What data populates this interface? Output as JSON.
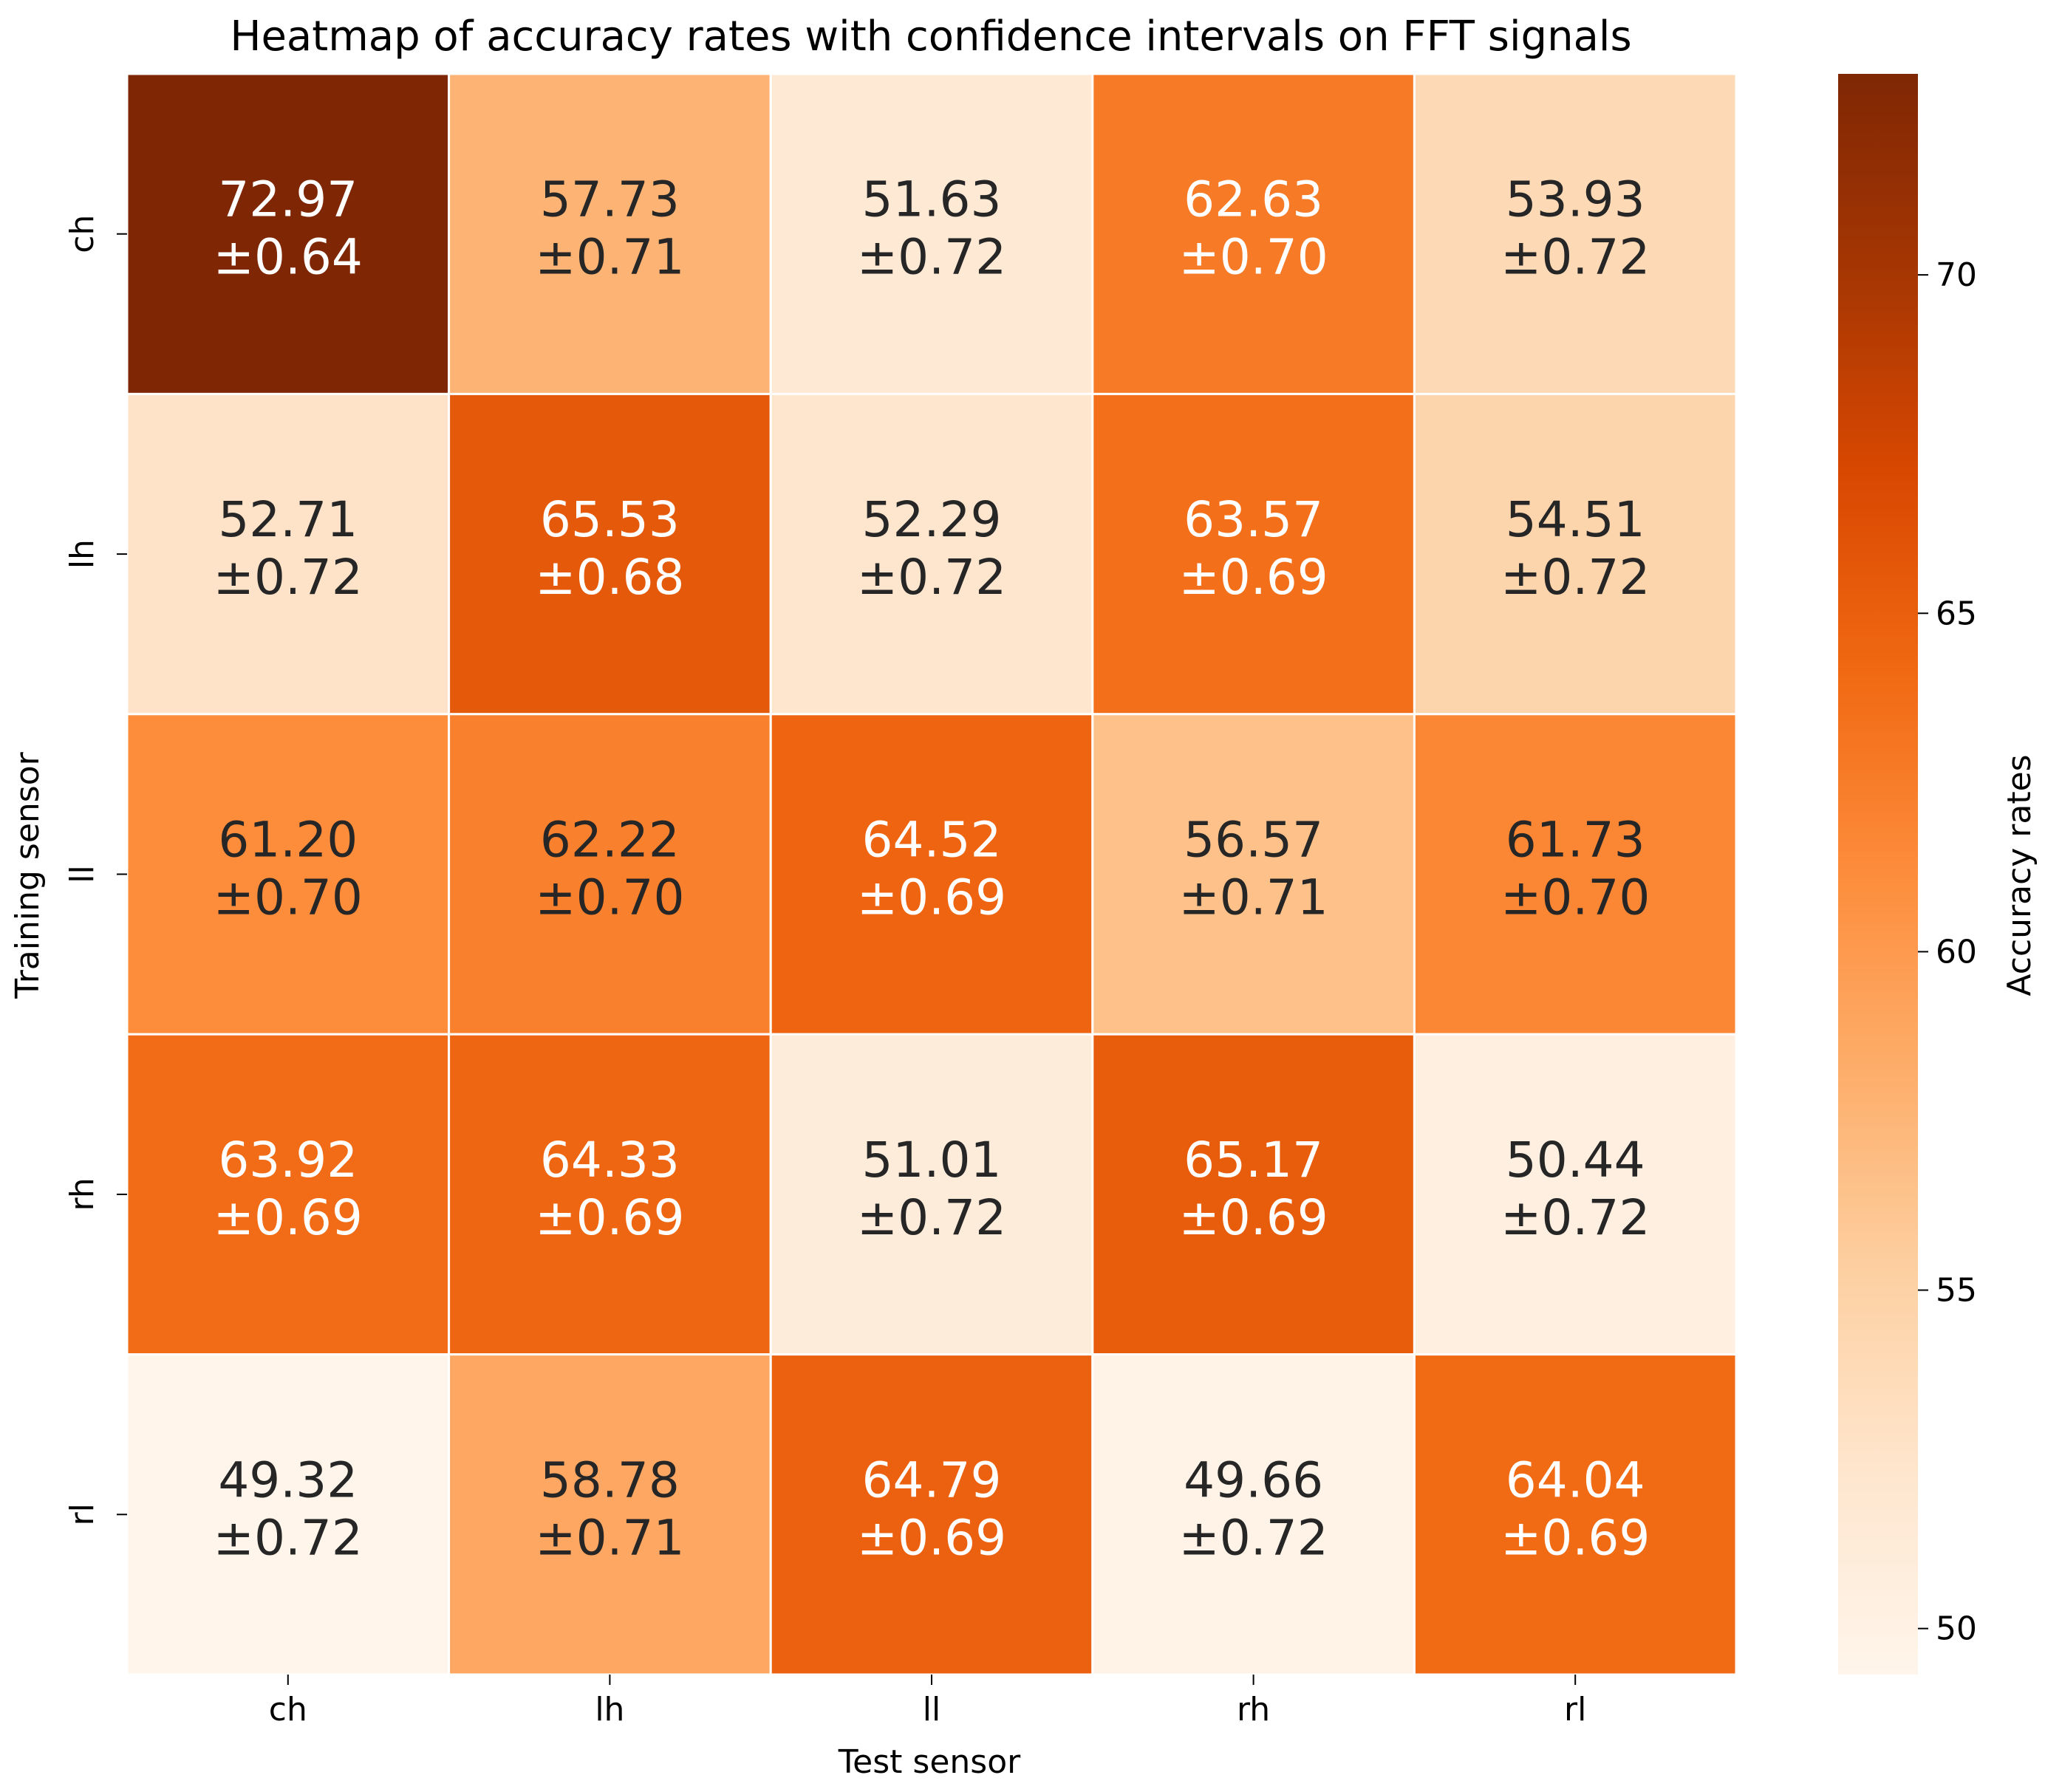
{
  "chart_data": {
    "type": "heatmap",
    "title": "Heatmap of accuracy rates with confidence intervals on FFT signals",
    "xlabel": "Test sensor",
    "ylabel": "Training sensor",
    "x_categories": [
      "ch",
      "lh",
      "ll",
      "rh",
      "rl"
    ],
    "y_categories": [
      "ch",
      "lh",
      "ll",
      "rh",
      "rl"
    ],
    "values": [
      [
        72.97,
        57.73,
        51.63,
        62.63,
        53.93
      ],
      [
        52.71,
        65.53,
        52.29,
        63.57,
        54.51
      ],
      [
        61.2,
        62.22,
        64.52,
        56.57,
        61.73
      ],
      [
        63.92,
        64.33,
        51.01,
        65.17,
        50.44
      ],
      [
        49.32,
        58.78,
        64.79,
        49.66,
        64.04
      ]
    ],
    "value_labels": [
      [
        "72.97",
        "57.73",
        "51.63",
        "62.63",
        "53.93"
      ],
      [
        "52.71",
        "65.53",
        "52.29",
        "63.57",
        "54.51"
      ],
      [
        "61.20",
        "62.22",
        "64.52",
        "56.57",
        "61.73"
      ],
      [
        "63.92",
        "64.33",
        "51.01",
        "65.17",
        "50.44"
      ],
      [
        "49.32",
        "58.78",
        "64.79",
        "49.66",
        "64.04"
      ]
    ],
    "ci_labels": [
      [
        "±0.64",
        "±0.71",
        "±0.72",
        "±0.70",
        "±0.72"
      ],
      [
        "±0.72",
        "±0.68",
        "±0.72",
        "±0.69",
        "±0.72"
      ],
      [
        "±0.70",
        "±0.70",
        "±0.69",
        "±0.71",
        "±0.70"
      ],
      [
        "±0.69",
        "±0.69",
        "±0.72",
        "±0.69",
        "±0.72"
      ],
      [
        "±0.72",
        "±0.71",
        "±0.69",
        "±0.72",
        "±0.69"
      ]
    ],
    "colorbar": {
      "label": "Accuracy rates",
      "range": [
        49.32,
        72.97
      ],
      "ticks": [
        50,
        55,
        60,
        65,
        70
      ],
      "tick_labels": [
        "50",
        "55",
        "60",
        "65",
        "70"
      ],
      "colormap": "Oranges"
    },
    "colormap_stops": [
      "#fff5eb",
      "#fee6ce",
      "#fdd0a2",
      "#fdae6b",
      "#fd8d3c",
      "#f16913",
      "#d94801",
      "#a63603",
      "#7f2704"
    ],
    "text_colors": {
      "dark": "#262626",
      "light": "#ffffff"
    }
  }
}
